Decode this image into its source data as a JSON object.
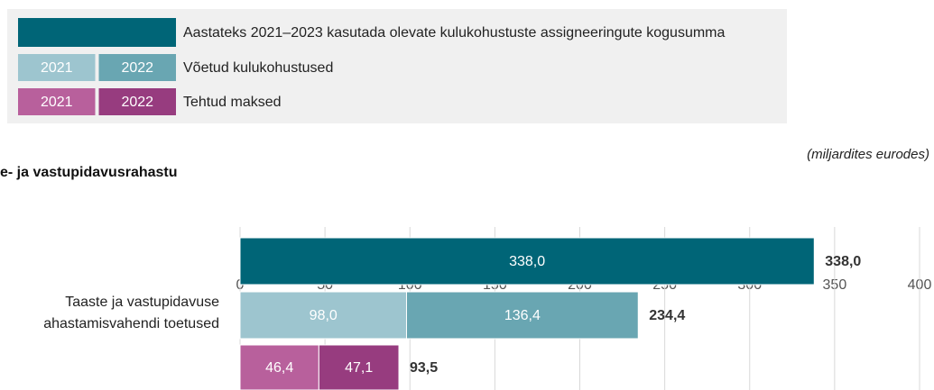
{
  "chart_data": {
    "type": "bar",
    "orientation": "horizontal",
    "legend": [
      {
        "text": "Aastateks 2021–2023 kasutada olevate kulukohustuste assigneeringute kogusumma",
        "swatches": [
          {
            "color": "#006577"
          }
        ]
      },
      {
        "text": "Võetud kulukohustused",
        "swatches": [
          {
            "label": "2021",
            "color": "#9dc5cf"
          },
          {
            "label": "2022",
            "color": "#69a6b2"
          }
        ]
      },
      {
        "text": "Tehtud maksed",
        "swatches": [
          {
            "label": "2021",
            "color": "#b8609c"
          },
          {
            "label": "2022",
            "color": "#973c7f"
          }
        ]
      }
    ],
    "unit_note": "(miljardites eurodes)",
    "section_title": "e- ja vastupidavusrahastu",
    "category_lines": [
      "Taaste ja vastupidavuse",
      "ahastamisvahendi toetused"
    ],
    "xlim": [
      0,
      400
    ],
    "xticks": [
      0,
      50,
      100,
      150,
      200,
      250,
      300,
      350,
      400
    ],
    "grid": true,
    "bars": [
      {
        "values": [
          338.0
        ],
        "value_labels": [
          "338,0"
        ],
        "colors": [
          "#006577"
        ],
        "total": 338.0,
        "total_label": "338,0"
      },
      {
        "values": [
          98.0,
          136.4
        ],
        "value_labels": [
          "98,0",
          "136,4"
        ],
        "colors": [
          "#9dc5cf",
          "#69a6b2"
        ],
        "total": 234.4,
        "total_label": "234,4"
      },
      {
        "values": [
          46.4,
          47.1
        ],
        "value_labels": [
          "46,4",
          "47,1"
        ],
        "colors": [
          "#b8609c",
          "#973c7f"
        ],
        "total": 93.5,
        "total_label": "93,5"
      }
    ]
  }
}
